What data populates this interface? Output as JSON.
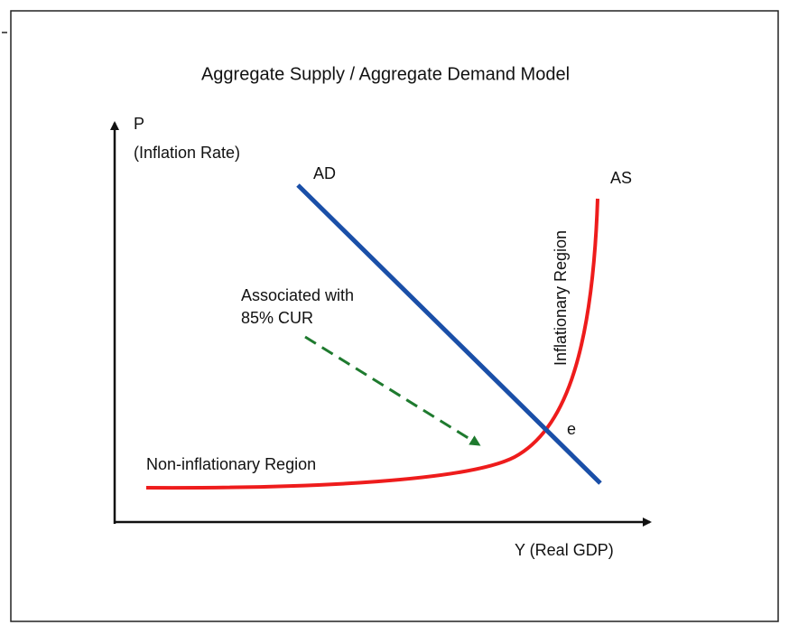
{
  "title": "Aggregate Supply / Aggregate Demand Model",
  "y_axis": {
    "symbol": "P",
    "label": "(Inflation Rate)"
  },
  "x_axis": {
    "label": "Y (Real GDP)"
  },
  "curves": {
    "demand": "AD",
    "supply": "AS"
  },
  "annotations": {
    "inflationary": "Inflationary Region",
    "non_inflationary": "Non-inflationary Region",
    "arrow_note": [
      "Associated with",
      "85% CUR"
    ],
    "equilibrium": "e"
  }
}
